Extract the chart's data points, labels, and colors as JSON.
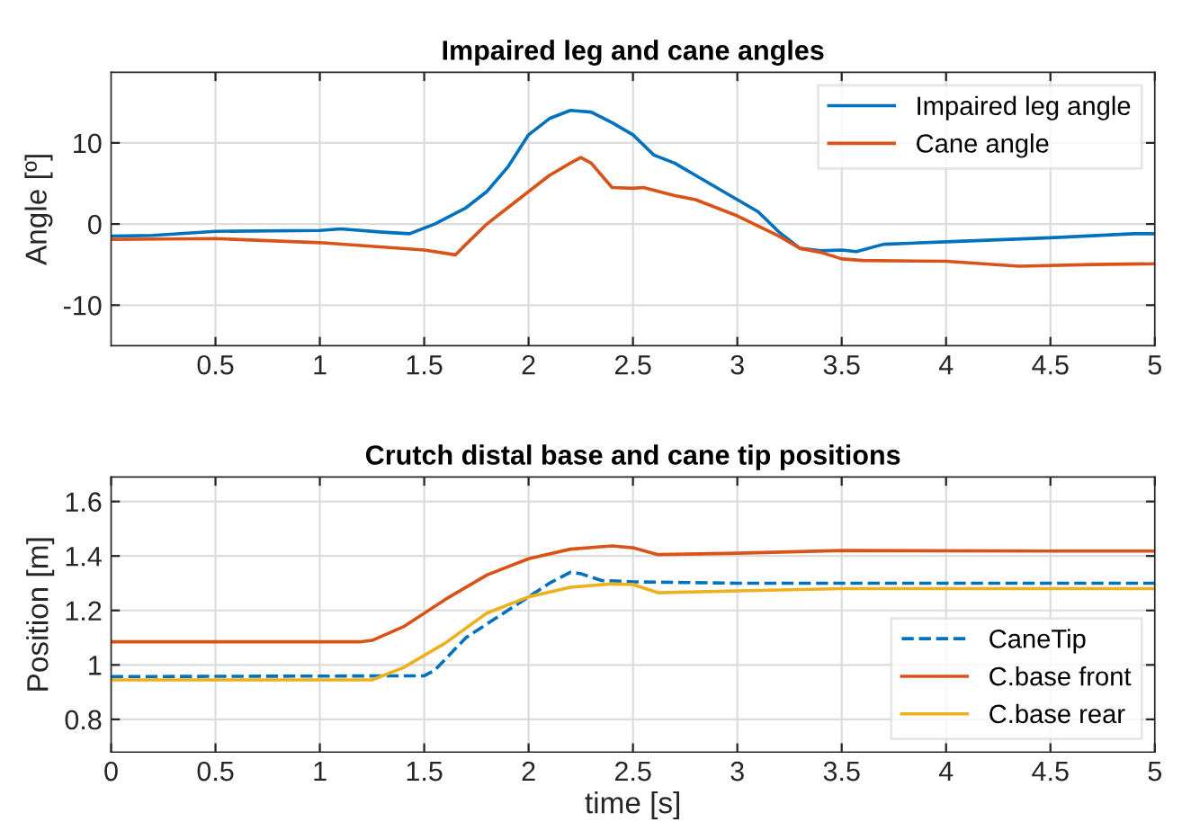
{
  "chart_data": [
    {
      "type": "line",
      "title": "Impaired leg and cane angles",
      "ylabel": "Angle [º]",
      "xlim": [
        0,
        5
      ],
      "ylim": [
        -15,
        18.7
      ],
      "xticks": [
        0.5,
        1,
        1.5,
        2,
        2.5,
        3,
        3.5,
        4,
        4.5,
        5
      ],
      "yticks": [
        -10,
        0,
        10
      ],
      "grid": true,
      "legend": "top right",
      "line_style": "solid",
      "series": [
        {
          "name": "Impaired leg angle",
          "color": "#0072bd",
          "x": [
            0,
            0.2,
            0.5,
            1.0,
            1.1,
            1.3,
            1.43,
            1.55,
            1.7,
            1.8,
            1.9,
            2.0,
            2.1,
            2.2,
            2.3,
            2.4,
            2.5,
            2.6,
            2.7,
            2.8,
            2.9,
            3.0,
            3.1,
            3.2,
            3.3,
            3.4,
            3.5,
            3.57,
            3.7,
            4.0,
            4.5,
            4.9,
            5
          ],
          "values": [
            -1.5,
            -1.4,
            -0.9,
            -0.8,
            -0.6,
            -1.0,
            -1.2,
            0,
            2,
            4,
            7,
            11,
            13,
            14,
            13.8,
            12.5,
            11,
            8.5,
            7.5,
            6,
            4.5,
            3,
            1.5,
            -1,
            -3,
            -3.3,
            -3.2,
            -3.4,
            -2.5,
            -2.2,
            -1.7,
            -1.2,
            -1.2
          ]
        },
        {
          "name": "Cane angle",
          "color": "#d95319",
          "x": [
            0,
            0.5,
            1.0,
            1.5,
            1.65,
            1.7,
            1.8,
            1.9,
            2.0,
            2.1,
            2.2,
            2.25,
            2.3,
            2.35,
            2.4,
            2.5,
            2.55,
            2.7,
            2.8,
            3.0,
            3.2,
            3.3,
            3.4,
            3.5,
            3.6,
            4.0,
            4.35,
            4.7,
            5
          ],
          "values": [
            -1.9,
            -1.8,
            -2.3,
            -3.2,
            -3.8,
            -2.5,
            0,
            2,
            4,
            6,
            7.5,
            8.2,
            7.5,
            6,
            4.5,
            4.4,
            4.5,
            3.5,
            3,
            1,
            -1.5,
            -3,
            -3.5,
            -4.3,
            -4.5,
            -4.6,
            -5.2,
            -5.0,
            -4.9
          ]
        }
      ]
    },
    {
      "type": "line",
      "title": "Crutch distal base and cane tip positions",
      "xlabel": "time [s]",
      "ylabel": "Position [m]",
      "xlim": [
        0,
        5
      ],
      "ylim": [
        0.68,
        1.69
      ],
      "xticks": [
        0,
        0.5,
        1,
        1.5,
        2,
        2.5,
        3,
        3.5,
        4,
        4.5,
        5
      ],
      "yticks": [
        0.8,
        1,
        1.2,
        1.4,
        1.6
      ],
      "grid": true,
      "legend": "bottom right",
      "series": [
        {
          "name": "CaneTip",
          "color": "#0072bd",
          "line_style": "dashed",
          "x": [
            0,
            1.5,
            1.55,
            1.7,
            1.9,
            2.0,
            2.1,
            2.2,
            2.25,
            2.35,
            2.5,
            3,
            5
          ],
          "values": [
            0.957,
            0.96,
            0.98,
            1.1,
            1.2,
            1.25,
            1.3,
            1.34,
            1.335,
            1.31,
            1.305,
            1.3,
            1.3
          ]
        },
        {
          "name": "C.base front",
          "color": "#d95319",
          "line_style": "solid",
          "x": [
            0,
            1.2,
            1.25,
            1.4,
            1.6,
            1.8,
            2.0,
            2.2,
            2.4,
            2.5,
            2.62,
            3,
            3.5,
            4.5,
            5
          ],
          "values": [
            1.085,
            1.085,
            1.09,
            1.14,
            1.24,
            1.33,
            1.39,
            1.425,
            1.437,
            1.43,
            1.405,
            1.41,
            1.42,
            1.418,
            1.418
          ]
        },
        {
          "name": "C.base rear",
          "color": "#edb120",
          "line_style": "solid",
          "x": [
            0,
            1.25,
            1.4,
            1.6,
            1.8,
            2.0,
            2.2,
            2.4,
            2.5,
            2.62,
            3,
            3.5,
            5
          ],
          "values": [
            0.945,
            0.945,
            0.99,
            1.08,
            1.19,
            1.25,
            1.285,
            1.298,
            1.295,
            1.265,
            1.272,
            1.28,
            1.28
          ]
        }
      ]
    }
  ]
}
